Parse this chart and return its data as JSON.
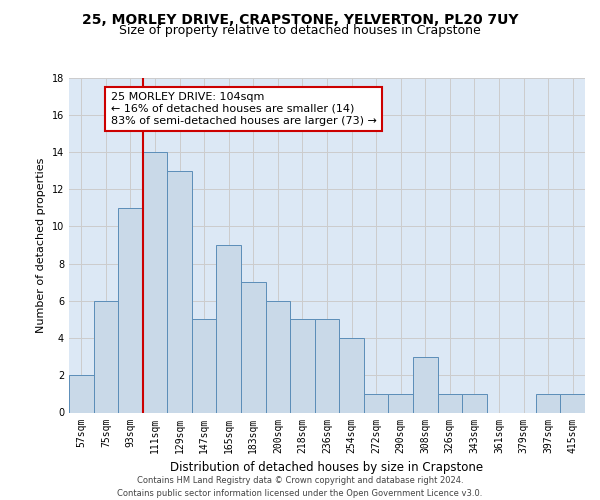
{
  "title": "25, MORLEY DRIVE, CRAPSTONE, YELVERTON, PL20 7UY",
  "subtitle": "Size of property relative to detached houses in Crapstone",
  "xlabel": "Distribution of detached houses by size in Crapstone",
  "ylabel": "Number of detached properties",
  "categories": [
    "57sqm",
    "75sqm",
    "93sqm",
    "111sqm",
    "129sqm",
    "147sqm",
    "165sqm",
    "183sqm",
    "200sqm",
    "218sqm",
    "236sqm",
    "254sqm",
    "272sqm",
    "290sqm",
    "308sqm",
    "326sqm",
    "343sqm",
    "361sqm",
    "379sqm",
    "397sqm",
    "415sqm"
  ],
  "values": [
    2,
    6,
    11,
    14,
    13,
    5,
    9,
    7,
    6,
    5,
    5,
    4,
    1,
    1,
    3,
    1,
    1,
    0,
    0,
    1,
    1
  ],
  "bar_color": "#c9d9e8",
  "bar_edge_color": "#5b8db8",
  "bar_width": 1.0,
  "vline_x": 2.5,
  "vline_color": "#cc0000",
  "annotation_text": "25 MORLEY DRIVE: 104sqm\n← 16% of detached houses are smaller (14)\n83% of semi-detached houses are larger (73) →",
  "annotation_box_color": "#ffffff",
  "annotation_box_edge": "#cc0000",
  "ylim": [
    0,
    18
  ],
  "yticks": [
    0,
    2,
    4,
    6,
    8,
    10,
    12,
    14,
    16,
    18
  ],
  "grid_color": "#cccccc",
  "bg_color": "#dce8f5",
  "footer": "Contains HM Land Registry data © Crown copyright and database right 2024.\nContains public sector information licensed under the Open Government Licence v3.0.",
  "title_fontsize": 10,
  "subtitle_fontsize": 9,
  "xlabel_fontsize": 8.5,
  "ylabel_fontsize": 8,
  "tick_fontsize": 7,
  "annotation_fontsize": 8,
  "footer_fontsize": 6
}
